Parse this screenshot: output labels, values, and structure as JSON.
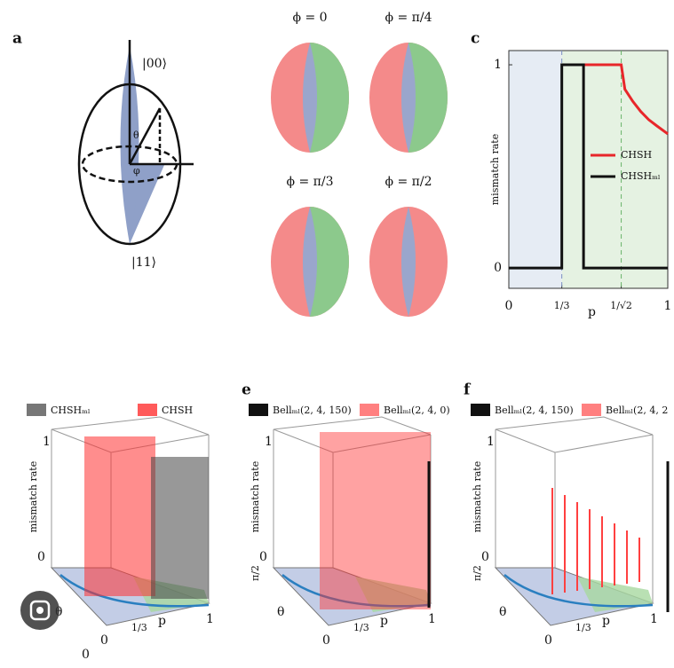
{
  "panel_a": {
    "label": "a",
    "ket_top": "|00⟩",
    "ket_bottom": "|11⟩",
    "theta": "θ",
    "phi": "φ"
  },
  "panel_b": {
    "titles": [
      "ϕ = 0",
      "ϕ = π/4",
      "ϕ = π/3",
      "ϕ = π/2"
    ]
  },
  "chart_data": {
    "type": "line",
    "label": "c",
    "ylabel": "mismatch rate",
    "xlabel": "p",
    "xlim": [
      0,
      1
    ],
    "ylim": [
      -0.1,
      1.07
    ],
    "xticks": [
      0,
      {
        "value": 0.3333,
        "label": "1/3"
      },
      {
        "value": 0.7071,
        "label": "1/√2"
      },
      1
    ],
    "yticks": [
      0,
      1
    ],
    "legend": "right",
    "series": [
      {
        "name": "CHSH",
        "color": "#e8262a",
        "x": [
          0.3333,
          0.7071,
          0.73,
          0.78,
          0.83,
          0.88,
          0.93,
          1
        ],
        "values": [
          1,
          1,
          0.88,
          0.82,
          0.77,
          0.73,
          0.7,
          0.66
        ]
      },
      {
        "name": "CHSHₘₗ",
        "color": "#111111",
        "x": [
          0,
          0.3333,
          0.3333,
          0.47,
          0.47,
          1
        ],
        "values": [
          0,
          0,
          1,
          1,
          0,
          0
        ]
      }
    ]
  },
  "panels_bottom": [
    {
      "legend": [
        "CHSHₘₗ",
        "CHSH"
      ],
      "ytop": "1",
      "ybottom": "0",
      "ylabel": "mismatch rate",
      "theta": "θ",
      "theta_zero": "0",
      "p_zero": "0",
      "p_third": "1/3",
      "p": "p",
      "p_one": "1"
    },
    {
      "label": "e",
      "legend": [
        "Bellₘₗ(2, 4, 150)",
        "Bellₘₗ(2, 4, 0)"
      ],
      "ytop": "1",
      "ybottom": "0",
      "ylabel": "mismatch rate",
      "theta": "θ",
      "theta_top": "π/2",
      "p_zero": "0",
      "p_third": "1/3",
      "p": "p",
      "p_one": "1"
    },
    {
      "label": "f",
      "legend": [
        "Bellₘₗ(2, 4, 150)",
        "Bellₘₗ(2, 4, 2"
      ],
      "ytop": "1",
      "ybottom": "0",
      "ylabel": "mismatch rate",
      "theta": "θ",
      "theta_top": "π/2",
      "p_zero": "0",
      "p_third": "1/3",
      "p": "p",
      "p_one": "1"
    }
  ]
}
